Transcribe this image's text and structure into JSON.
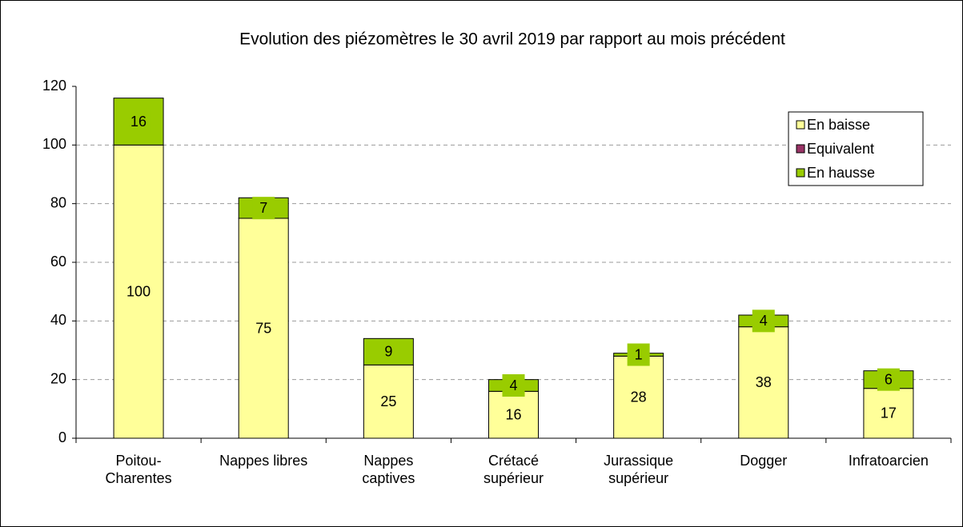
{
  "chart_data": {
    "type": "stacked_bar",
    "title": "Evolution des piézomètres le 30 avril 2019 par rapport au mois précédent",
    "categories": [
      "Poitou-\nCharentes",
      "Nappes libres",
      "Nappes\ncaptives",
      "Crétacé\nsupérieur",
      "Jurassique\nsupérieur",
      "Dogger",
      "Infratoarcien"
    ],
    "series": [
      {
        "name": "En baisse",
        "color": "#ffff99",
        "values": [
          100,
          75,
          25,
          16,
          28,
          38,
          17
        ]
      },
      {
        "name": "Equivalent",
        "color": "#993366",
        "values": [
          0,
          0,
          0,
          0,
          0,
          0,
          0
        ]
      },
      {
        "name": "En hausse",
        "color": "#99cc00",
        "values": [
          16,
          7,
          9,
          4,
          1,
          4,
          6
        ]
      }
    ],
    "ylim": [
      0,
      120
    ],
    "yticks": [
      0,
      20,
      40,
      60,
      80,
      100,
      120
    ],
    "grid": true,
    "legend": "top-right"
  }
}
